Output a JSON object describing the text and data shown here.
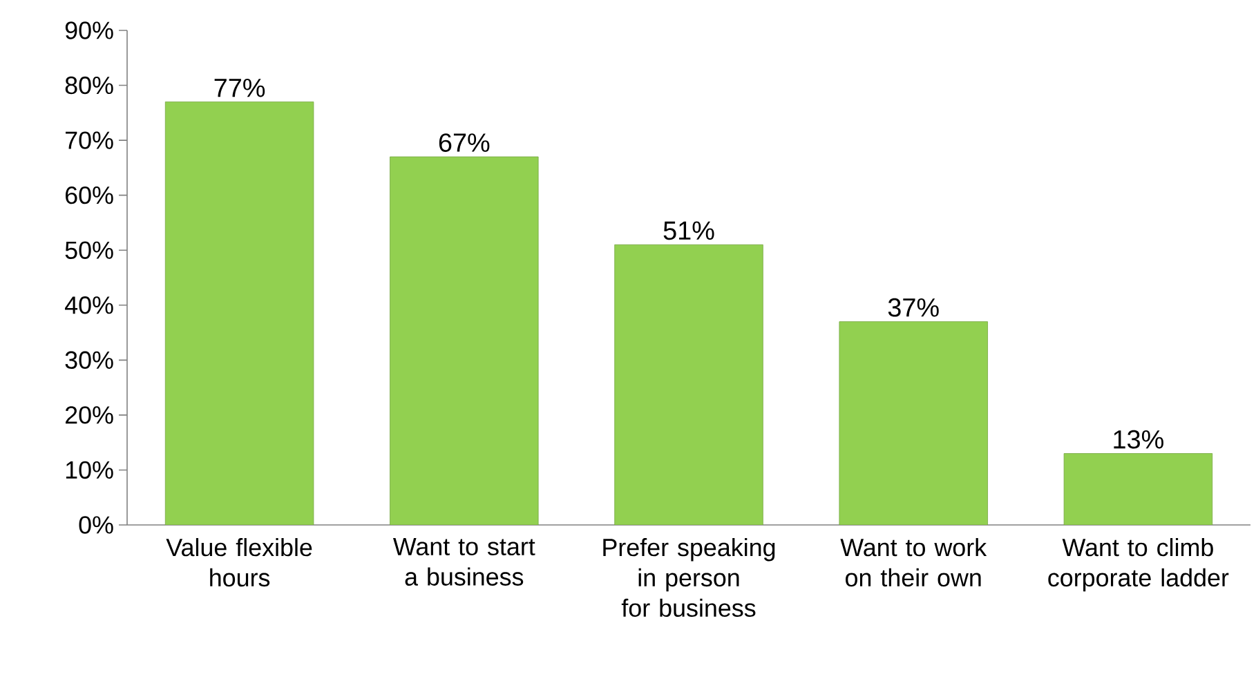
{
  "chart_data": {
    "type": "bar",
    "categories": [
      "Value flexible hours",
      "Want to start a business",
      "Prefer speaking in person for business",
      "Want to work on their own",
      "Want to climb corporate ladder"
    ],
    "values": [
      77,
      67,
      51,
      37,
      13
    ],
    "value_labels": [
      "77%",
      "67%",
      "51%",
      "37%",
      "13%"
    ],
    "color": "#92d050",
    "ylim": [
      0,
      90
    ],
    "yticks": [
      {
        "value": 0,
        "label": "0%"
      },
      {
        "value": 10,
        "label": "10%"
      },
      {
        "value": 20,
        "label": "20%"
      },
      {
        "value": 30,
        "label": "30%"
      },
      {
        "value": 40,
        "label": "40%"
      },
      {
        "value": 50,
        "label": "50%"
      },
      {
        "value": 60,
        "label": "60%"
      },
      {
        "value": 70,
        "label": "70%"
      },
      {
        "value": 80,
        "label": "80%"
      },
      {
        "value": 90,
        "label": "90%"
      }
    ],
    "grid": false
  }
}
